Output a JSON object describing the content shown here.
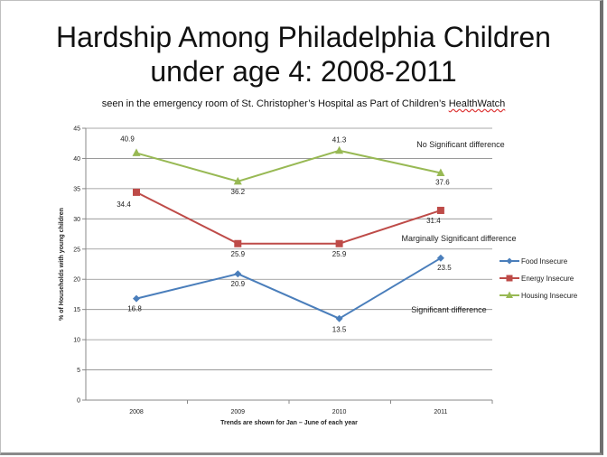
{
  "chart_data": {
    "type": "line",
    "title_line1": "Hardship Among Philadelphia Children",
    "title_line2": "under age 4: 2008-2011",
    "subtitle_pre": "seen in the emergency room of St. Christopher’s Hospital as Part of Children’s ",
    "subtitle_brand": "HealthWatch",
    "xlabel": "Trends are shown for Jan – June of each year",
    "ylabel": "% of Households with young children",
    "categories": [
      "2008",
      "2009",
      "2010",
      "2011"
    ],
    "ylim": [
      0,
      45
    ],
    "yticks": [
      "0",
      "5",
      "10",
      "15",
      "20",
      "25",
      "30",
      "35",
      "40",
      "45"
    ],
    "grid": true,
    "legend_position": "right",
    "series": [
      {
        "name": "Food Insecure",
        "color": "#4a7ebb",
        "marker": "diamond",
        "values": [
          16.8,
          20.9,
          13.5,
          23.5
        ],
        "labels": [
          "16.8",
          "20.9",
          "13.5",
          "23.5"
        ]
      },
      {
        "name": "Energy Insecure",
        "color": "#be4b48",
        "marker": "square",
        "values": [
          34.4,
          25.9,
          25.9,
          31.4
        ],
        "labels": [
          "34.4",
          "25.9",
          "25.9",
          "31.4"
        ]
      },
      {
        "name": "Housing Insecure",
        "color": "#98b954",
        "marker": "triangle",
        "values": [
          40.9,
          36.2,
          41.3,
          37.6
        ],
        "labels": [
          "40.9",
          "36.2",
          "41.3",
          "37.6"
        ]
      }
    ],
    "annotations": [
      {
        "text": "No Significant difference",
        "series": 2
      },
      {
        "text": "Marginally Significant difference",
        "series": 1
      },
      {
        "text": "Significant difference",
        "series": 0
      }
    ]
  }
}
